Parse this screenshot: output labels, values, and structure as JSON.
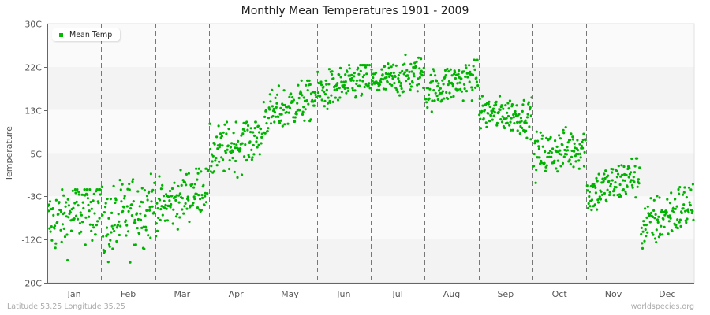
{
  "title": "Monthly Mean Temperatures 1901 - 2009",
  "footer": {
    "location": "Latitude 53.25 Longitude 35.25",
    "source": "worldspecies.org"
  },
  "legend": {
    "label": "Mean Temp",
    "color": "#00bb00"
  },
  "colors": {
    "point": "#00b300",
    "band_light": "#fafafa",
    "band_dark": "#f3f3f3",
    "axis": "#666666",
    "divider": "#777777"
  },
  "chart_data": {
    "type": "scatter",
    "title": "Monthly Mean Temperatures 1901 - 2009",
    "xlabel": "",
    "ylabel": "Temperature",
    "ylim": [
      -20,
      30
    ],
    "y_ticks": [
      30,
      21.67,
      13.33,
      5,
      -3.33,
      -11.67,
      -20
    ],
    "y_tick_labels": [
      "30C",
      "22C",
      "13C",
      "5C",
      "-3C",
      "-12C",
      "-20C"
    ],
    "categories": [
      "Jan",
      "Feb",
      "Mar",
      "Apr",
      "May",
      "Jun",
      "Jul",
      "Aug",
      "Sep",
      "Oct",
      "Nov",
      "Dec"
    ],
    "years": [
      1901,
      2009
    ],
    "points_per_month": 109,
    "series": [
      {
        "name": "Mean Temp",
        "monthly_mean": [
          -6.5,
          -7.0,
          -3.5,
          6.5,
          14.0,
          18.0,
          19.5,
          18.5,
          12.5,
          5.5,
          -1.0,
          -7.0
        ],
        "monthly_min": [
          -19,
          -18,
          -11,
          -2,
          8,
          12,
          15,
          13,
          7,
          -1,
          -7,
          -14
        ],
        "monthly_max": [
          -2,
          1,
          2,
          11,
          19,
          22,
          24,
          23,
          16,
          10,
          4,
          -1
        ],
        "monthly_trend": [
          4,
          5,
          5,
          4,
          4,
          3,
          2,
          3,
          -1,
          2,
          4,
          5
        ]
      }
    ],
    "legend_position": "top-left",
    "grid": "alternating horizontal bands, dashed vertical month dividers"
  },
  "axis": {
    "y_label": "Temperature",
    "y_ticks": [
      "30C",
      "22C",
      "13C",
      "5C",
      "-3C",
      "-12C",
      "-20C"
    ],
    "x_ticks": [
      "Jan",
      "Feb",
      "Mar",
      "Apr",
      "May",
      "Jun",
      "Jul",
      "Aug",
      "Sep",
      "Oct",
      "Nov",
      "Dec"
    ]
  }
}
